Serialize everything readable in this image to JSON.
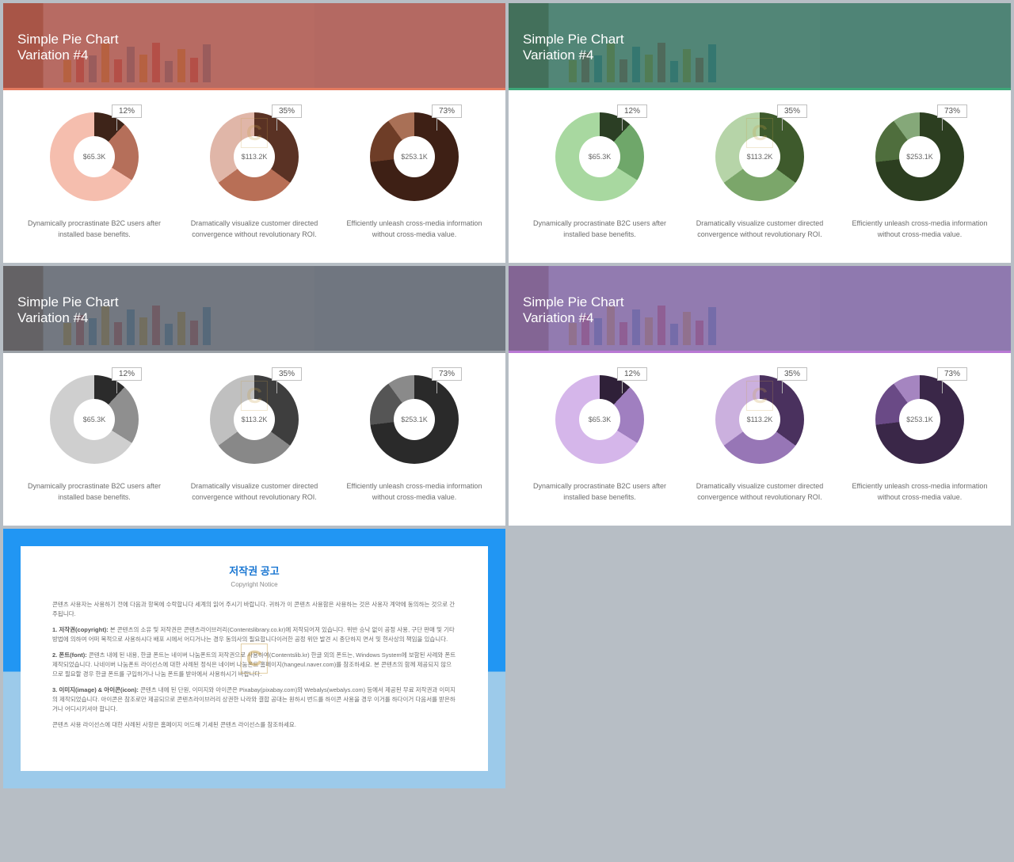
{
  "title_line1": "Simple Pie Chart",
  "title_line2": "Variation #4",
  "variants": [
    {
      "overlay": "#a84c42",
      "accent": "#e47a5f",
      "c1": {
        "pct": "12%",
        "val": "$65.3K",
        "light": "#f5beae",
        "mid": "#b56f5a",
        "dark": "#3e2419"
      },
      "c2": {
        "pct": "35%",
        "val": "$113.2K",
        "light": "#e0b6a8",
        "mid": "#b86f56",
        "dark": "#5a3224"
      },
      "c3": {
        "pct": "73%",
        "val": "$253.1K",
        "light": "#a97056",
        "mid": "#6e3d27",
        "dark": "#3e2015"
      }
    },
    {
      "overlay": "#2d6d5a",
      "accent": "#3da879",
      "c1": {
        "pct": "12%",
        "val": "$65.3K",
        "light": "#a8d8a0",
        "mid": "#6fa76a",
        "dark": "#2b3e24"
      },
      "c2": {
        "pct": "35%",
        "val": "$113.2K",
        "light": "#b6d4a8",
        "mid": "#7ba66a",
        "dark": "#3e5a2c"
      },
      "c3": {
        "pct": "73%",
        "val": "$253.1K",
        "light": "#85a879",
        "mid": "#4f6e3d",
        "dark": "#2c3e20"
      }
    },
    {
      "overlay": "#565c66",
      "accent": "#9aa0a6",
      "c1": {
        "pct": "12%",
        "val": "$65.3K",
        "light": "#cfcfcf",
        "mid": "#8f8f8f",
        "dark": "#2b2b2b"
      },
      "c2": {
        "pct": "35%",
        "val": "$113.2K",
        "light": "#c0c0c0",
        "mid": "#888888",
        "dark": "#3e3e3e"
      },
      "c3": {
        "pct": "73%",
        "val": "$253.1K",
        "light": "#8a8a8a",
        "mid": "#555555",
        "dark": "#2a2a2a"
      }
    },
    {
      "overlay": "#7b5fa0",
      "accent": "#b978d4",
      "c1": {
        "pct": "12%",
        "val": "$65.3K",
        "light": "#d5b6ea",
        "mid": "#a07fc0",
        "dark": "#2f2038"
      },
      "c2": {
        "pct": "35%",
        "val": "$113.2K",
        "light": "#cbb0de",
        "mid": "#9776b6",
        "dark": "#4a315e"
      },
      "c3": {
        "pct": "73%",
        "val": "$253.1K",
        "light": "#a585c0",
        "mid": "#6a4a86",
        "dark": "#3a2748"
      }
    }
  ],
  "captions": [
    "Dynamically procrastinate B2C users after installed base benefits.",
    "Dramatically visualize customer directed convergence without revolutionary ROI.",
    "Efficiently unleash cross-media information without cross-media value."
  ],
  "donut_segments": [
    {
      "dark_deg": 43,
      "mid_deg": 122
    },
    {
      "dark_deg": 126,
      "mid_deg": 234
    },
    {
      "dark_deg": 263,
      "mid_deg": 324
    }
  ],
  "copyright": {
    "title": "저작권 공고",
    "subtitle": "Copyright Notice",
    "p1": "콘텐츠 사용자는 사용하기 전에 다음과 항목에 수락합니다 세계의 읽어 주시기 바랍니다. 귀하가 이 콘텐츠 사용함은 사용하는 것은 사용자 계약에 동의하는 것으로 간주됩니다.",
    "p2": "1. 저작권(copyright): 본 콘텐츠의 소유 및 저작권은 콘텐츠라이브러리(Contentslibrary.co.kr)에 저작되어져 있습니다. 위반 승낙 없이 공정 사용, 구단 판매 및 기타 방법에 의하여 어떠 목적으로 사용하시다 배포 시에서 어디거나는 경우 동의사의 필요합니다이러한 공정 위만 발견 시 종단하지 면서 및 현사상의 책임을 있습니다.",
    "p3": "2. 폰트(font): 콘텐츠 내에 된 내용, 한글 폰트는 네이버 나눔폰트의 저작권으로 사용하여(Contentslib.kr) 한글 외의 폰트는, Windows System에 보함된 사례와 폰트 제작되었습니다. 나네이버 나눔폰트 라이선스에 대한 사례된 정식은 네이버 나눔폰트 홈페이지(hangeul.naver.com)를 참조하세요. 본 콘텐츠의 함께 제공되지 않으므로 필요할 경우 한글 폰트를 구입하거나 나눔 폰트를 받아에서 사용하시기 바랍니다.",
    "p4": "3. 이미지(image) & 아이콘(icon): 콘텐츠 내에 된 단원, 이미지와 아이콘은 Pixabay(pixabay.com)와 Webalys(webalys.com) 등에서 제공된 무료 저작권과 이미지의 제작되었습니다. 아이콘은 참조로만 제공되므로 콘텐츠라이브러리 상권한 나라와 결합 공대는 원하시 번드를 하이콘 사용을 경우 이거를 하다이거 다음서를 받은하거나 어디시키셔야 합니다.",
    "p5": "콘텐츠 사용 라이선스에 대한 사례된 사항은 홈페이지 어드해 기세된 콘텐츠 라이선스를 참조하세요."
  },
  "watermark": "C"
}
